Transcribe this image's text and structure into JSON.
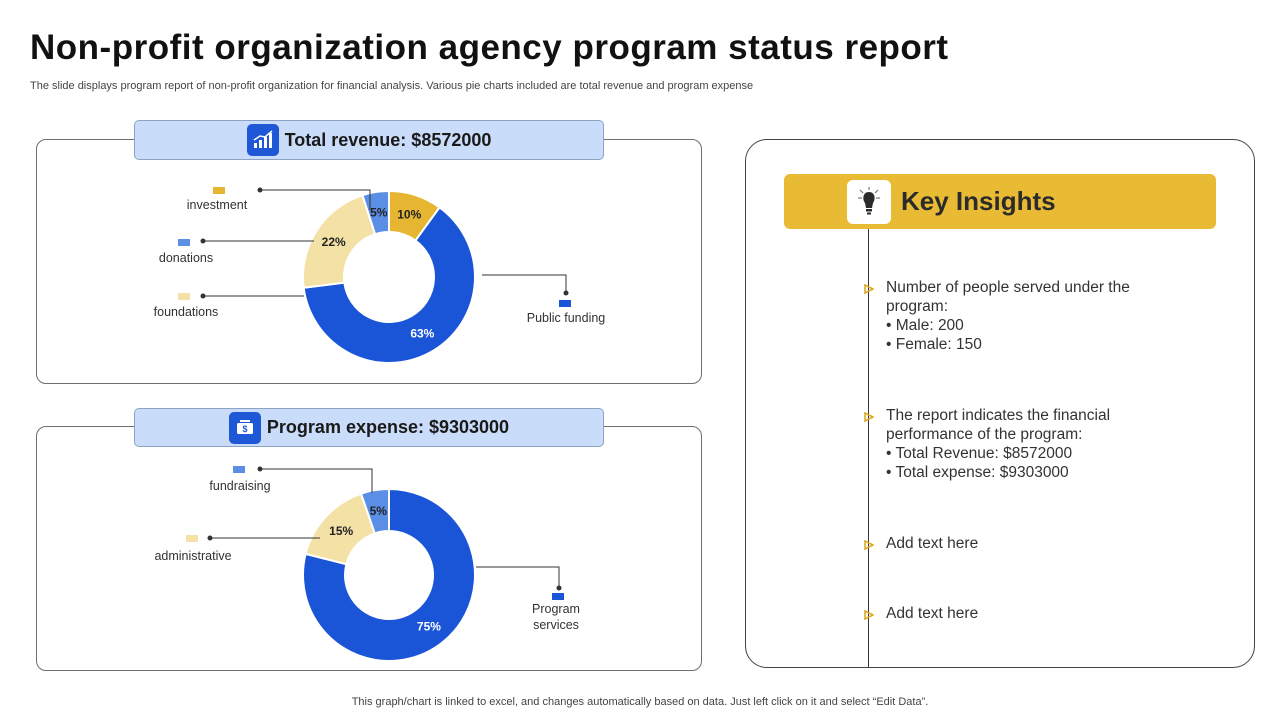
{
  "title": "Non-profit organization agency program status report",
  "subtitle": "The slide displays program report of non-profit organization for financial analysis. Various pie charts included are total revenue and program expense",
  "footer": "This graph/chart is linked to excel,  and changes automatically based on data. Just left click on it and select “Edit Data”.",
  "colors": {
    "blue_dark": "#1a55d8",
    "blue_light": "#5b8fe6",
    "cream": "#f3e1a6",
    "gold": "#e6b532",
    "banner_bg": "#c9dcf9",
    "insight_gold": "#e9bb35"
  },
  "revenue": {
    "banner_label": "Total revenue: $8572000",
    "icon": "bar-chart-icon"
  },
  "expense": {
    "banner_label": "Program expense: $9303000",
    "icon": "money-hand-icon"
  },
  "chart_data": [
    {
      "type": "pie",
      "title": "Total revenue: $8572000",
      "categories": [
        "investment",
        "Public funding",
        "foundations",
        "donations"
      ],
      "values": [
        10,
        63,
        22,
        5
      ],
      "labels": [
        "10%",
        "63%",
        "22%",
        "5%"
      ]
    },
    {
      "type": "pie",
      "title": "Program expense: $9303000",
      "categories": [
        "Program services",
        "administrative",
        "fundraising"
      ],
      "values": [
        75,
        15,
        5
      ],
      "labels": [
        "75%",
        "15%",
        "5%"
      ]
    }
  ],
  "insights": {
    "title": "Key Insights",
    "icon": "lightbulb-icon",
    "items": [
      {
        "lines": [
          "Number of people served under the",
          "program:",
          "• Male: 200",
          "• Female: 150"
        ]
      },
      {
        "lines": [
          "The report indicates the financial",
          "performance of the program:",
          "• Total Revenue:  $8572000",
          "• Total expense: $9303000"
        ]
      },
      {
        "lines": [
          "Add text here"
        ]
      },
      {
        "lines": [
          "Add text here"
        ]
      }
    ]
  }
}
